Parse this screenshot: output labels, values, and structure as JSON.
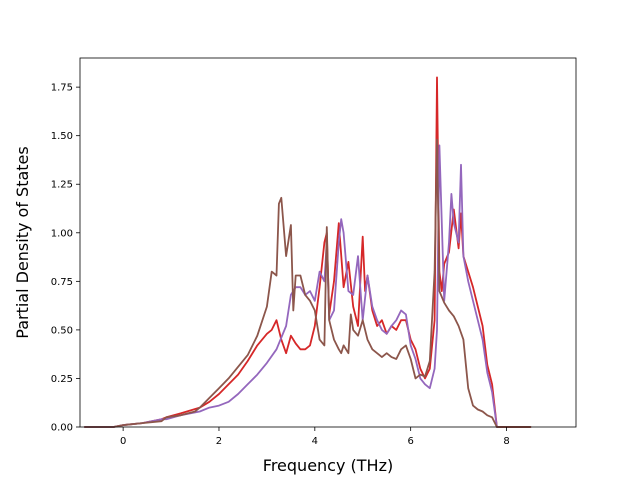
{
  "chart_data": {
    "type": "line",
    "title": "",
    "xlabel": "Frequency (THz)",
    "ylabel": "Partial Density of States",
    "xlim": [
      -0.9,
      9.45
    ],
    "ylim": [
      0.0,
      1.9
    ],
    "xticks": [
      0,
      2,
      4,
      6,
      8
    ],
    "yticks": [
      0.0,
      0.25,
      0.5,
      0.75,
      1.0,
      1.25,
      1.5,
      1.75
    ],
    "xtick_labels": [
      "0",
      "2",
      "4",
      "6",
      "8"
    ],
    "ytick_labels": [
      "0.00",
      "0.25",
      "0.50",
      "0.75",
      "1.00",
      "1.25",
      "1.50",
      "1.75"
    ],
    "grid": false,
    "legend": "none",
    "series": [
      {
        "color": "#d62728",
        "x": [
          -0.8,
          -0.2,
          0,
          0.4,
          0.8,
          0.9,
          1.2,
          1.6,
          1.8,
          2.0,
          2.2,
          2.4,
          2.6,
          2.8,
          3.0,
          3.1,
          3.2,
          3.3,
          3.4,
          3.5,
          3.6,
          3.7,
          3.8,
          3.9,
          4.0,
          4.1,
          4.2,
          4.25,
          4.3,
          4.4,
          4.5,
          4.6,
          4.7,
          4.8,
          4.9,
          5.0,
          5.05,
          5.1,
          5.2,
          5.3,
          5.4,
          5.5,
          5.6,
          5.7,
          5.8,
          5.9,
          6.0,
          6.1,
          6.2,
          6.3,
          6.4,
          6.5,
          6.55,
          6.6,
          6.65,
          6.7,
          6.8,
          6.9,
          7.0,
          7.05,
          7.1,
          7.2,
          7.3,
          7.4,
          7.5,
          7.6,
          7.7,
          7.8,
          8.5
        ],
        "y": [
          0.0,
          0.0,
          0.01,
          0.02,
          0.04,
          0.05,
          0.07,
          0.1,
          0.13,
          0.17,
          0.22,
          0.27,
          0.34,
          0.42,
          0.48,
          0.5,
          0.55,
          0.45,
          0.38,
          0.47,
          0.43,
          0.4,
          0.4,
          0.42,
          0.52,
          0.72,
          0.95,
          1.0,
          0.58,
          0.75,
          1.05,
          0.72,
          0.85,
          0.62,
          0.52,
          0.98,
          0.7,
          0.78,
          0.6,
          0.52,
          0.55,
          0.48,
          0.52,
          0.5,
          0.55,
          0.55,
          0.45,
          0.4,
          0.3,
          0.25,
          0.3,
          0.55,
          1.8,
          0.8,
          0.7,
          0.84,
          0.9,
          1.12,
          0.92,
          1.1,
          0.88,
          0.8,
          0.72,
          0.62,
          0.52,
          0.32,
          0.22,
          0.0,
          0.0
        ]
      },
      {
        "color": "#9467bd",
        "x": [
          -0.8,
          -0.2,
          0,
          0.4,
          0.8,
          0.9,
          1.2,
          1.6,
          1.8,
          2.0,
          2.2,
          2.4,
          2.6,
          2.8,
          3.0,
          3.2,
          3.4,
          3.5,
          3.6,
          3.7,
          3.8,
          3.9,
          4.0,
          4.1,
          4.2,
          4.25,
          4.3,
          4.4,
          4.5,
          4.55,
          4.6,
          4.7,
          4.8,
          4.9,
          5.0,
          5.1,
          5.2,
          5.3,
          5.4,
          5.5,
          5.6,
          5.7,
          5.8,
          5.9,
          6.0,
          6.1,
          6.2,
          6.3,
          6.4,
          6.5,
          6.55,
          6.6,
          6.7,
          6.8,
          6.85,
          6.9,
          7.0,
          7.05,
          7.1,
          7.2,
          7.3,
          7.4,
          7.5,
          7.6,
          7.7,
          7.8
        ],
        "y": [
          0.0,
          0.0,
          0.01,
          0.02,
          0.04,
          0.04,
          0.06,
          0.08,
          0.1,
          0.11,
          0.13,
          0.17,
          0.22,
          0.27,
          0.33,
          0.4,
          0.52,
          0.68,
          0.72,
          0.72,
          0.68,
          0.7,
          0.65,
          0.8,
          0.75,
          0.95,
          0.55,
          0.6,
          0.95,
          1.07,
          1.0,
          0.7,
          0.68,
          0.88,
          0.55,
          0.78,
          0.62,
          0.55,
          0.5,
          0.48,
          0.52,
          0.55,
          0.6,
          0.58,
          0.42,
          0.35,
          0.25,
          0.22,
          0.2,
          0.3,
          0.5,
          1.45,
          0.65,
          0.95,
          1.2,
          1.05,
          0.95,
          1.35,
          0.88,
          0.75,
          0.65,
          0.55,
          0.45,
          0.28,
          0.18,
          0.0
        ]
      },
      {
        "color": "#8c564b",
        "x": [
          -0.8,
          -0.2,
          0,
          0.4,
          0.8,
          0.9,
          1.2,
          1.5,
          1.6,
          1.8,
          2.0,
          2.2,
          2.4,
          2.6,
          2.8,
          3.0,
          3.1,
          3.2,
          3.25,
          3.3,
          3.4,
          3.5,
          3.55,
          3.6,
          3.7,
          3.8,
          3.9,
          4.0,
          4.1,
          4.2,
          4.25,
          4.3,
          4.4,
          4.5,
          4.55,
          4.6,
          4.7,
          4.75,
          4.8,
          4.9,
          5.0,
          5.1,
          5.2,
          5.3,
          5.4,
          5.5,
          5.6,
          5.7,
          5.8,
          5.9,
          6.0,
          6.1,
          6.2,
          6.3,
          6.4,
          6.5,
          6.55,
          6.6,
          6.7,
          6.8,
          6.9,
          7.0,
          7.1,
          7.2,
          7.3,
          7.4,
          7.5,
          7.6,
          7.7,
          7.8,
          8.5
        ],
        "y": [
          0.0,
          0.0,
          0.01,
          0.02,
          0.03,
          0.05,
          0.06,
          0.08,
          0.1,
          0.15,
          0.2,
          0.25,
          0.31,
          0.37,
          0.47,
          0.62,
          0.8,
          0.78,
          1.15,
          1.18,
          0.88,
          1.04,
          0.6,
          0.78,
          0.78,
          0.68,
          0.65,
          0.6,
          0.45,
          0.42,
          1.03,
          0.55,
          0.45,
          0.4,
          0.38,
          0.42,
          0.38,
          0.58,
          0.5,
          0.47,
          0.55,
          0.45,
          0.4,
          0.38,
          0.36,
          0.38,
          0.36,
          0.35,
          0.4,
          0.42,
          0.35,
          0.25,
          0.27,
          0.26,
          0.34,
          0.8,
          1.48,
          0.7,
          0.64,
          0.6,
          0.57,
          0.52,
          0.45,
          0.2,
          0.11,
          0.09,
          0.08,
          0.06,
          0.05,
          0.0,
          0.0
        ]
      }
    ]
  }
}
